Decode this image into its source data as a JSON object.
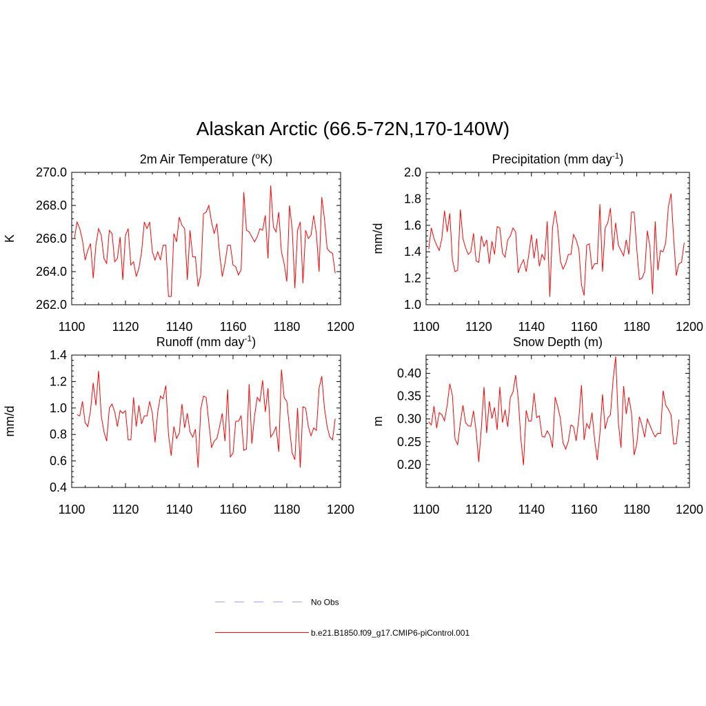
{
  "figure_title": "Alaskan Arctic (66.5-72N,170-140W)",
  "colors": {
    "model": "#ff0000",
    "obs": "#9999ee",
    "axis": "#000000"
  },
  "legend": {
    "obs_label": "No Obs",
    "model_label": "b.e21.B1850.f09_g17.CMIP6-piControl.001"
  },
  "chart_data": [
    {
      "type": "line",
      "title": {
        "main": "2m Air Temperature (",
        "sup": "o",
        "rest": "K)"
      },
      "xlabel": "",
      "ylabel": "K",
      "xlim": [
        1100,
        1200
      ],
      "ylim": [
        262,
        270
      ],
      "x_ticks": [
        1100,
        1120,
        1140,
        1160,
        1180,
        1200
      ],
      "y_ticks": [
        262.0,
        264.0,
        266.0,
        268.0,
        270.0
      ],
      "y_tick_labels": [
        "262.0",
        "264.0",
        "266.0",
        "268.0",
        "270.0"
      ],
      "x_start": 1101,
      "values": [
        266.0,
        267.0,
        266.6,
        265.9,
        264.7,
        265.3,
        265.7,
        263.6,
        265.6,
        266.6,
        266.2,
        264.8,
        264.5,
        266.5,
        266.3,
        264.6,
        264.8,
        266.1,
        263.5,
        266.2,
        266.6,
        264.4,
        264.6,
        263.7,
        264.2,
        265.2,
        267.0,
        266.6,
        267.0,
        265.2,
        264.7,
        265.2,
        264.7,
        265.6,
        265.6,
        262.5,
        262.5,
        266.3,
        265.8,
        267.3,
        266.8,
        266.6,
        263.5,
        266.5,
        264.9,
        264.9,
        263.1,
        263.8,
        267.5,
        267.6,
        268.0,
        267.0,
        266.3,
        266.9,
        265.1,
        263.7,
        264.5,
        265.6,
        265.6,
        264.4,
        264.3,
        263.8,
        264.1,
        268.8,
        266.5,
        266.4,
        266.1,
        265.8,
        266.1,
        266.6,
        266.5,
        267.4,
        264.8,
        269.2,
        266.7,
        266.4,
        267.6,
        265.2,
        264.5,
        263.4,
        268.0,
        266.6,
        263.0,
        266.5,
        267.0,
        263.3,
        266.5,
        266.0,
        266.2,
        267.4,
        266.3,
        264.0,
        268.5,
        267.2,
        265.4,
        265.2,
        265.1,
        263.9
      ],
      "series": [
        {
          "name": "b.e21.B1850.f09_g17.CMIP6-piControl.001"
        }
      ]
    },
    {
      "type": "line",
      "title": {
        "main": "Precipitation (mm day",
        "sup": "-1",
        "rest": ")"
      },
      "xlabel": "",
      "ylabel": "mm/d",
      "xlim": [
        1100,
        1200
      ],
      "ylim": [
        1.0,
        2.0
      ],
      "x_ticks": [
        1100,
        1120,
        1140,
        1160,
        1180,
        1200
      ],
      "y_ticks": [
        1.0,
        1.2,
        1.4,
        1.6,
        1.8,
        2.0
      ],
      "y_tick_labels": [
        "1.0",
        "1.2",
        "1.4",
        "1.6",
        "1.8",
        "2.0"
      ],
      "x_start": 1101,
      "values": [
        1.42,
        1.58,
        1.5,
        1.45,
        1.41,
        1.5,
        1.71,
        1.55,
        1.69,
        1.34,
        1.25,
        1.26,
        1.72,
        1.5,
        1.43,
        1.38,
        1.4,
        1.54,
        1.33,
        1.32,
        1.52,
        1.44,
        1.49,
        1.31,
        1.48,
        1.38,
        1.59,
        1.58,
        1.39,
        1.36,
        1.49,
        1.52,
        1.58,
        1.55,
        1.24,
        1.3,
        1.34,
        1.25,
        1.38,
        1.53,
        1.35,
        1.5,
        1.29,
        1.38,
        1.34,
        1.63,
        1.06,
        1.58,
        1.71,
        1.58,
        1.33,
        1.27,
        1.31,
        1.38,
        1.38,
        1.53,
        1.49,
        1.42,
        1.15,
        1.07,
        1.45,
        1.46,
        1.27,
        1.31,
        1.31,
        1.76,
        1.25,
        1.58,
        1.62,
        1.73,
        1.41,
        1.62,
        1.45,
        1.41,
        1.37,
        1.49,
        1.38,
        1.7,
        1.7,
        1.42,
        1.19,
        1.2,
        1.25,
        1.56,
        1.44,
        1.08,
        1.63,
        1.26,
        1.41,
        1.4,
        1.47,
        1.74,
        1.84,
        1.5,
        1.22,
        1.31,
        1.32,
        1.47
      ],
      "series": [
        {
          "name": "b.e21.B1850.f09_g17.CMIP6-piControl.001"
        }
      ]
    },
    {
      "type": "line",
      "title": {
        "main": "Runoff (mm day",
        "sup": "-1",
        "rest": ")"
      },
      "xlabel": "",
      "ylabel": "mm/d",
      "xlim": [
        1100,
        1200
      ],
      "ylim": [
        0.4,
        1.4
      ],
      "x_ticks": [
        1100,
        1120,
        1140,
        1160,
        1180,
        1200
      ],
      "y_ticks": [
        0.4,
        0.6,
        0.8,
        1.0,
        1.2,
        1.4
      ],
      "y_tick_labels": [
        "0.4",
        "0.6",
        "0.8",
        "1.0",
        "1.2",
        "1.4"
      ],
      "x_start": 1102,
      "values": [
        0.95,
        0.94,
        1.05,
        0.89,
        0.86,
        0.98,
        1.19,
        1.02,
        1.28,
        0.94,
        0.82,
        0.75,
        1.0,
        1.03,
        0.97,
        0.86,
        0.98,
        0.96,
        0.98,
        0.76,
        0.76,
        1.08,
        0.86,
        1.02,
        0.88,
        0.94,
        0.94,
        1.05,
        0.96,
        0.74,
        0.97,
        1.09,
        1.07,
        1.17,
        0.8,
        0.64,
        0.86,
        0.77,
        0.81,
        1.03,
        0.85,
        0.96,
        0.82,
        0.78,
        0.84,
        0.55,
        0.99,
        1.09,
        1.08,
        0.89,
        0.7,
        0.75,
        0.77,
        0.86,
        0.96,
        0.75,
        1.14,
        0.63,
        0.66,
        0.9,
        0.9,
        0.94,
        0.68,
        0.69,
        1.18,
        0.73,
        0.94,
        1.08,
        1.05,
        1.21,
        0.97,
        1.15,
        0.78,
        0.81,
        0.86,
        0.67,
        1.29,
        1.08,
        1.05,
        0.85,
        0.66,
        0.61,
        1.0,
        0.55,
        1.01,
        1.0,
        0.86,
        0.79,
        0.85,
        0.83,
        1.15,
        1.24,
        1.0,
        0.86,
        0.78,
        0.76,
        0.92
      ],
      "series": [
        {
          "name": "b.e21.B1850.f09_g17.CMIP6-piControl.001"
        }
      ]
    },
    {
      "type": "line",
      "title": {
        "main": "Snow Depth (m)",
        "sup": "",
        "rest": ""
      },
      "xlabel": "",
      "ylabel": "m",
      "xlim": [
        1100,
        1200
      ],
      "ylim": [
        0.15,
        0.44
      ],
      "x_ticks": [
        1100,
        1120,
        1140,
        1160,
        1180,
        1200
      ],
      "y_ticks": [
        0.2,
        0.25,
        0.3,
        0.35,
        0.4
      ],
      "y_tick_labels": [
        "0.20",
        "0.25",
        "0.30",
        "0.35",
        "0.40"
      ],
      "x_start": 1101,
      "values": [
        0.294,
        0.287,
        0.328,
        0.28,
        0.314,
        0.309,
        0.296,
        0.33,
        0.377,
        0.351,
        0.256,
        0.244,
        0.292,
        0.33,
        0.292,
        0.285,
        0.284,
        0.318,
        0.274,
        0.206,
        0.281,
        0.37,
        0.269,
        0.339,
        0.301,
        0.325,
        0.276,
        0.37,
        0.292,
        0.32,
        0.283,
        0.347,
        0.359,
        0.396,
        0.344,
        0.256,
        0.199,
        0.319,
        0.295,
        0.296,
        0.357,
        0.303,
        0.307,
        0.262,
        0.26,
        0.274,
        0.264,
        0.237,
        0.348,
        0.327,
        0.301,
        0.248,
        0.234,
        0.251,
        0.287,
        0.283,
        0.252,
        0.302,
        0.374,
        0.254,
        0.29,
        0.279,
        0.314,
        0.254,
        0.21,
        0.268,
        0.354,
        0.278,
        0.302,
        0.309,
        0.385,
        0.437,
        0.292,
        0.237,
        0.372,
        0.311,
        0.348,
        0.312,
        0.221,
        0.245,
        0.305,
        0.286,
        0.26,
        0.3,
        0.286,
        0.272,
        0.261,
        0.269,
        0.268,
        0.362,
        0.33,
        0.321,
        0.309,
        0.245,
        0.246,
        0.299
      ],
      "series": [
        {
          "name": "b.e21.B1850.f09_g17.CMIP6-piControl.001"
        }
      ]
    }
  ]
}
